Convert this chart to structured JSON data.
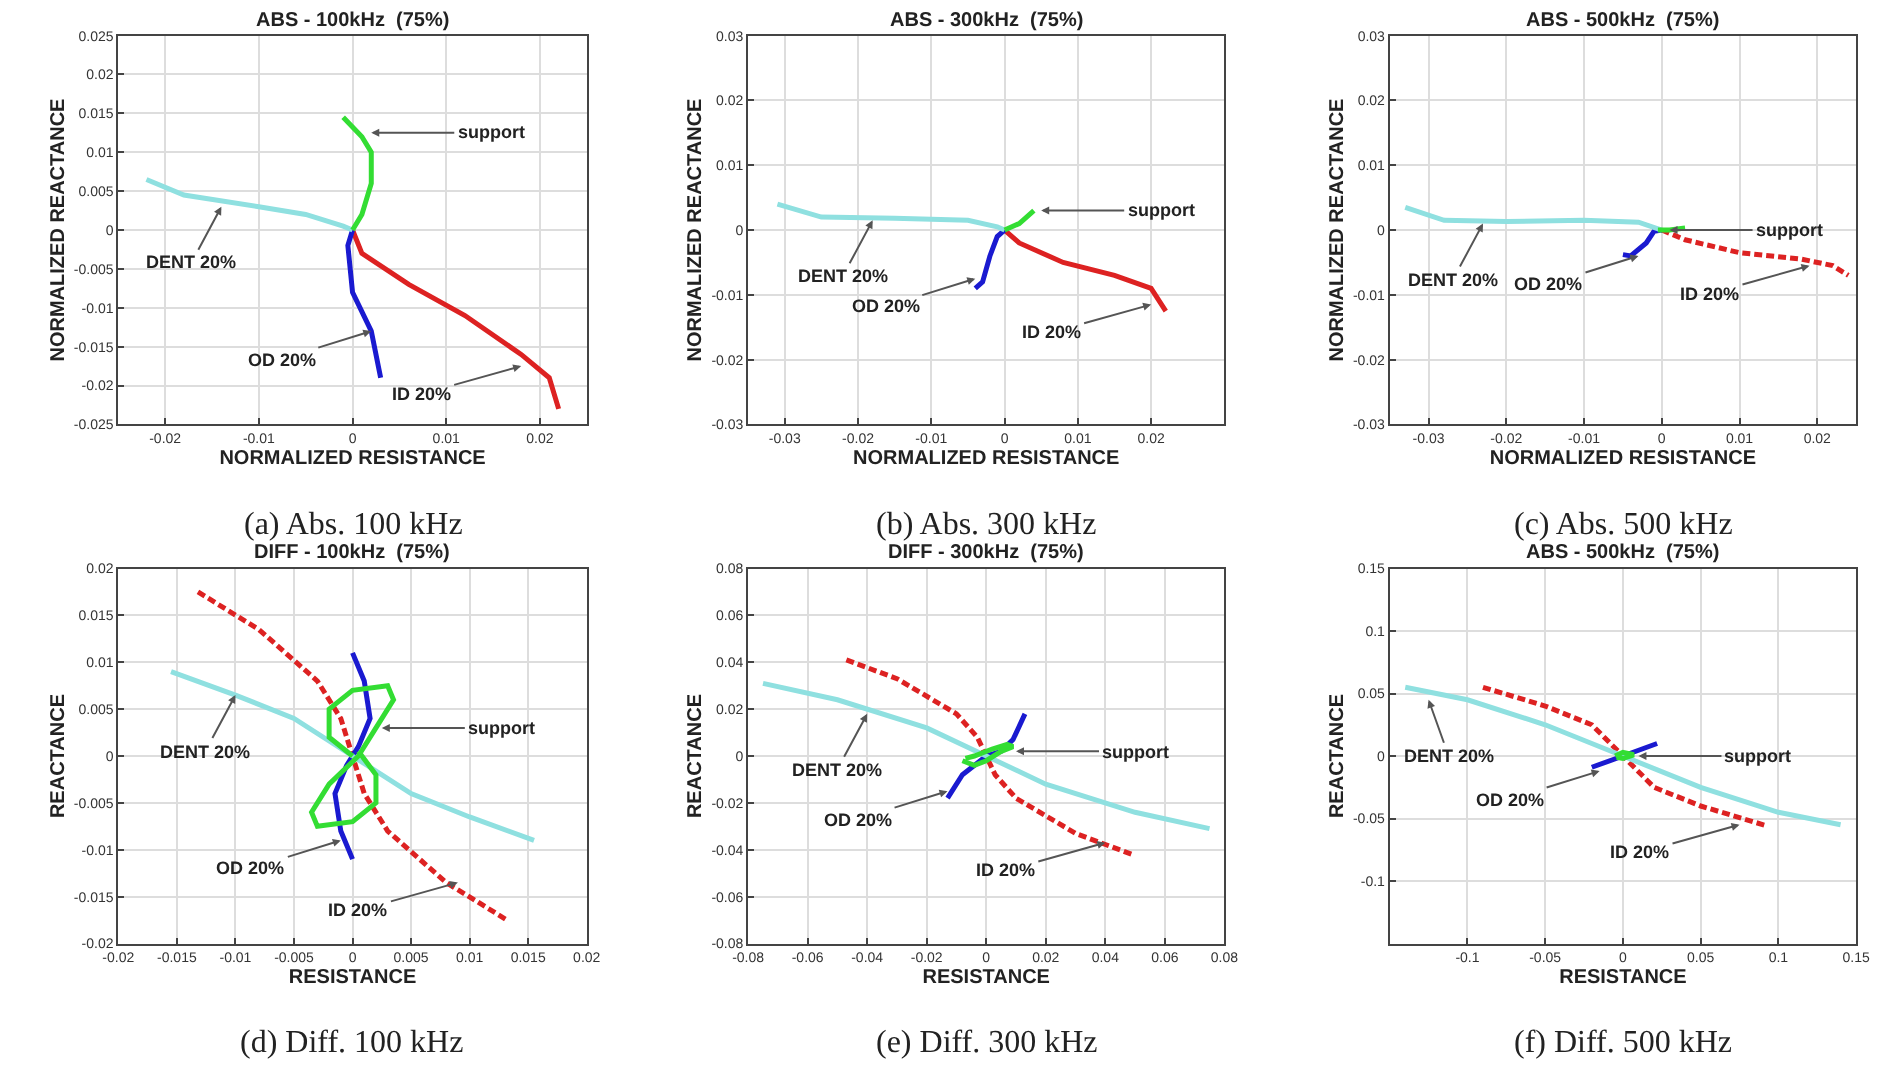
{
  "chart_data": [
    {
      "type": "line",
      "title": "ABS - 100kHz  (75%)",
      "xlabel": "NORMALIZED RESISTANCE",
      "ylabel": "NORMALIZED REACTANCE",
      "xlim": [
        -0.025,
        0.025
      ],
      "xticks": [
        -0.02,
        -0.01,
        0,
        0.01,
        0.02
      ],
      "ylim": [
        -0.025,
        0.025
      ],
      "yticks": [
        -0.025,
        -0.02,
        -0.015,
        -0.01,
        -0.005,
        0,
        0.005,
        0.01,
        0.015,
        0.02,
        0.025
      ],
      "grid": true,
      "series": [
        {
          "color": "#33dd33",
          "x": [
            0,
            0.001,
            0.002,
            0.002,
            0.001,
            -0.001
          ],
          "values": [
            0,
            0.002,
            0.006,
            0.01,
            0.012,
            0.0145
          ]
        },
        {
          "color": "#8fe0e0",
          "x": [
            -0.022,
            -0.018,
            -0.01,
            -0.005,
            -0.001,
            0
          ],
          "values": [
            0.0065,
            0.0045,
            0.003,
            0.002,
            0.0005,
            0
          ]
        },
        {
          "color": "#1a1ad0",
          "x": [
            0,
            -0.0005,
            0,
            0.002,
            0.003
          ],
          "values": [
            0,
            -0.002,
            -0.008,
            -0.013,
            -0.019
          ]
        },
        {
          "color": "#dd2222",
          "x": [
            0,
            0.001,
            0.006,
            0.012,
            0.018,
            0.021,
            0.022
          ],
          "values": [
            0,
            -0.003,
            -0.007,
            -0.011,
            -0.016,
            -0.019,
            -0.023
          ]
        }
      ],
      "annotations": [
        {
          "text": "support",
          "x": 0.002,
          "y": 0.0125
        },
        {
          "text": "DENT 20%",
          "x": -0.014,
          "y": 0.003
        },
        {
          "text": "OD 20%",
          "x": 0.002,
          "y": -0.013
        },
        {
          "text": "ID 20%",
          "x": 0.018,
          "y": -0.0175
        },
        "(a) Abs. 100 kHz"
      ]
    },
    {
      "type": "line",
      "title": "ABS - 300kHz  (75%)",
      "xlabel": "NORMALIZED RESISTANCE",
      "ylabel": "NORMALIZED REACTANCE",
      "xlim": [
        -0.035,
        0.03
      ],
      "xticks": [
        -0.03,
        -0.02,
        -0.01,
        0,
        0.01,
        0.02
      ],
      "ylim": [
        -0.03,
        0.03
      ],
      "yticks": [
        -0.03,
        -0.02,
        -0.01,
        0,
        0.01,
        0.02,
        0.03
      ],
      "grid": true,
      "series": [
        {
          "color": "#33dd33",
          "x": [
            0,
            0.002,
            0.003,
            0.004
          ],
          "values": [
            0,
            0.001,
            0.002,
            0.003
          ]
        },
        {
          "color": "#8fe0e0",
          "x": [
            -0.031,
            -0.025,
            -0.015,
            -0.005,
            -0.001,
            0
          ],
          "values": [
            0.004,
            0.002,
            0.0018,
            0.0015,
            0.0005,
            0
          ]
        },
        {
          "color": "#1a1ad0",
          "x": [
            0,
            -0.001,
            -0.002,
            -0.003,
            -0.004
          ],
          "values": [
            0,
            -0.001,
            -0.004,
            -0.008,
            -0.009
          ]
        },
        {
          "color": "#dd2222",
          "x": [
            0,
            0.002,
            0.008,
            0.015,
            0.02,
            0.022
          ],
          "values": [
            0,
            -0.002,
            -0.005,
            -0.007,
            -0.009,
            -0.0125
          ]
        }
      ],
      "annotations": [
        {
          "text": "support",
          "x": 0.005,
          "y": 0.003
        },
        {
          "text": "DENT 20%",
          "x": -0.018,
          "y": 0.0015
        },
        {
          "text": "OD 20%",
          "x": -0.004,
          "y": -0.0075
        },
        {
          "text": "ID 20%",
          "x": 0.02,
          "y": -0.0115
        },
        "(b) Abs. 300 kHz"
      ]
    },
    {
      "type": "line",
      "title": "ABS - 500kHz  (75%)",
      "xlabel": "NORMALIZED RESISTANCE",
      "ylabel": "NORMALIZED REACTANCE",
      "xlim": [
        -0.035,
        0.025
      ],
      "xticks": [
        -0.03,
        -0.02,
        -0.01,
        0,
        0.01,
        0.02
      ],
      "ylim": [
        -0.03,
        0.03
      ],
      "yticks": [
        -0.03,
        -0.02,
        -0.01,
        0,
        0.01,
        0.02,
        0.03
      ],
      "grid": true,
      "series": [
        {
          "color": "#33dd33",
          "x": [
            -0.0005,
            0.001,
            0.003
          ],
          "values": [
            0,
            0,
            0.0003
          ]
        },
        {
          "color": "#8fe0e0",
          "x": [
            -0.033,
            -0.028,
            -0.02,
            -0.01,
            -0.003,
            0
          ],
          "values": [
            0.0035,
            0.0015,
            0.0013,
            0.0015,
            0.0012,
            0
          ]
        },
        {
          "color": "#1a1ad0",
          "x": [
            0,
            -0.001,
            -0.002,
            -0.004,
            -0.005
          ],
          "values": [
            0,
            -0.0002,
            -0.002,
            -0.004,
            -0.0038
          ]
        },
        {
          "color": "#dd2222",
          "line_style": "dashed",
          "x": [
            0,
            0.003,
            0.01,
            0.018,
            0.022,
            0.024
          ],
          "values": [
            0,
            -0.0015,
            -0.0035,
            -0.0045,
            -0.0055,
            -0.007
          ]
        }
      ],
      "annotations": [
        {
          "text": "support",
          "x": 0.001,
          "y": 0
        },
        {
          "text": "DENT 20%",
          "x": -0.023,
          "y": 0.001
        },
        {
          "text": "OD 20%",
          "x": -0.003,
          "y": -0.004
        },
        {
          "text": "ID 20%",
          "x": 0.019,
          "y": -0.0055
        },
        "(c) Abs. 500 kHz"
      ]
    },
    {
      "type": "line",
      "title": "DIFF - 100kHz  (75%)",
      "xlabel": "RESISTANCE",
      "ylabel": "REACTANCE",
      "xlim": [
        -0.02,
        0.02
      ],
      "xticks": [
        -0.02,
        -0.015,
        -0.01,
        -0.005,
        0,
        0.005,
        0.01,
        0.015,
        0.02
      ],
      "ylim": [
        -0.02,
        0.02
      ],
      "yticks": [
        -0.02,
        -0.015,
        -0.01,
        -0.005,
        0,
        0.005,
        0.01,
        0.015,
        0.02
      ],
      "grid": true,
      "series": [
        {
          "color": "#33dd33",
          "x": [
            0,
            -0.002,
            -0.002,
            0,
            0.003,
            0.0035,
            0.002,
            0.0005,
            -0.002,
            -0.0035,
            -0.003,
            0,
            0.002,
            0.002,
            0.0005
          ],
          "values": [
            0,
            0.002,
            0.005,
            0.007,
            0.0075,
            0.006,
            0.003,
            0,
            -0.003,
            -0.006,
            -0.0075,
            -0.007,
            -0.005,
            -0.002,
            0.0005
          ]
        },
        {
          "color": "#8fe0e0",
          "x": [
            -0.0155,
            -0.01,
            -0.005,
            0,
            0.005,
            0.01,
            0.0155
          ],
          "values": [
            0.009,
            0.0065,
            0.004,
            0,
            -0.004,
            -0.0065,
            -0.009
          ]
        },
        {
          "color": "#1a1ad0",
          "x": [
            0,
            0.001,
            0.0015,
            0.0005,
            0,
            -0.0005,
            -0.0015,
            -0.001,
            0
          ],
          "values": [
            0.011,
            0.008,
            0.004,
            0.001,
            0,
            -0.001,
            -0.004,
            -0.008,
            -0.011
          ]
        },
        {
          "color": "#dd2222",
          "line_style": "dashed",
          "x": [
            -0.0132,
            -0.008,
            -0.003,
            -0.001,
            0,
            0.001,
            0.003,
            0.008,
            0.0132
          ],
          "values": [
            0.0175,
            0.0135,
            0.008,
            0.004,
            0,
            -0.004,
            -0.008,
            -0.0135,
            -0.0175
          ]
        }
      ],
      "annotations": [
        {
          "text": "support",
          "x": 0.0025,
          "y": 0.003
        },
        {
          "text": "DENT 20%",
          "x": -0.01,
          "y": 0.0065
        },
        {
          "text": "OD 20%",
          "x": -0.001,
          "y": -0.009
        },
        {
          "text": "ID 20%",
          "x": 0.009,
          "y": -0.0135
        },
        "(d) Diff. 100 kHz"
      ]
    },
    {
      "type": "line",
      "title": "DIFF - 300kHz  (75%)",
      "xlabel": "RESISTANCE",
      "ylabel": "REACTANCE",
      "xlim": [
        -0.08,
        0.08
      ],
      "xticks": [
        -0.08,
        -0.06,
        -0.04,
        -0.02,
        0,
        0.02,
        0.04,
        0.06,
        0.08
      ],
      "ylim": [
        -0.08,
        0.08
      ],
      "yticks": [
        -0.08,
        -0.06,
        -0.04,
        -0.02,
        0,
        0.02,
        0.04,
        0.06,
        0.08
      ],
      "grid": true,
      "series": [
        {
          "color": "#33dd33",
          "x": [
            -0.008,
            -0.004,
            0,
            0.005,
            0.009,
            0.007,
            0.002,
            -0.004,
            -0.007
          ],
          "values": [
            -0.002,
            -0.004,
            -0.002,
            0.002,
            0.004,
            0.005,
            0.003,
            0,
            -0.001
          ]
        },
        {
          "color": "#8fe0e0",
          "x": [
            -0.075,
            -0.05,
            -0.02,
            0,
            0.02,
            0.05,
            0.075
          ],
          "values": [
            0.031,
            0.024,
            0.012,
            0,
            -0.012,
            -0.024,
            -0.031
          ]
        },
        {
          "color": "#1a1ad0",
          "x": [
            -0.013,
            -0.008,
            -0.002,
            0,
            0.005,
            0.009,
            0.013
          ],
          "values": [
            -0.018,
            -0.008,
            -0.002,
            0,
            0.002,
            0.007,
            0.018
          ]
        },
        {
          "color": "#dd2222",
          "line_style": "dashed",
          "x": [
            -0.047,
            -0.03,
            -0.01,
            -0.003,
            0,
            0.003,
            0.01,
            0.03,
            0.049
          ],
          "values": [
            0.041,
            0.033,
            0.018,
            0.008,
            0,
            -0.008,
            -0.018,
            -0.033,
            -0.042
          ]
        }
      ],
      "annotations": [
        {
          "text": "support",
          "x": 0.01,
          "y": 0.002
        },
        {
          "text": "DENT 20%",
          "x": -0.04,
          "y": 0.018
        },
        {
          "text": "OD 20%",
          "x": -0.013,
          "y": -0.015
        },
        {
          "text": "ID 20%",
          "x": 0.04,
          "y": -0.037
        },
        "(e) Diff. 300 kHz"
      ]
    },
    {
      "type": "line",
      "title": "ABS - 500kHz  (75%)",
      "xlabel": "RESISTANCE",
      "ylabel": "REACTANCE",
      "xlim": [
        -0.15,
        0.15
      ],
      "xticks": [
        -0.1,
        -0.05,
        0,
        0.05,
        0.1,
        0.15
      ],
      "ylim": [
        -0.15,
        0.15
      ],
      "yticks": [
        -0.1,
        -0.05,
        0,
        0.05,
        0.1,
        0.15
      ],
      "grid": true,
      "series": [
        {
          "color": "#33dd33",
          "x": [
            -0.005,
            0,
            0.007,
            0,
            -0.004
          ],
          "values": [
            0,
            0.003,
            0.001,
            -0.002,
            -0.001
          ]
        },
        {
          "color": "#8fe0e0",
          "x": [
            -0.14,
            -0.1,
            -0.05,
            0,
            0.05,
            0.1,
            0.14
          ],
          "values": [
            0.055,
            0.045,
            0.025,
            0,
            -0.025,
            -0.045,
            -0.055
          ]
        },
        {
          "color": "#1a1ad0",
          "x": [
            -0.02,
            0,
            0.022
          ],
          "values": [
            -0.009,
            0,
            0.01
          ]
        },
        {
          "color": "#dd2222",
          "line_style": "dashed",
          "x": [
            -0.09,
            -0.05,
            -0.02,
            0,
            0.02,
            0.05,
            0.093
          ],
          "values": [
            0.055,
            0.04,
            0.025,
            0,
            -0.025,
            -0.04,
            -0.056
          ]
        }
      ],
      "annotations": [
        {
          "text": "support",
          "x": 0.01,
          "y": 0
        },
        {
          "text": "DENT 20%",
          "x": -0.125,
          "y": 0.045
        },
        {
          "text": "OD 20%",
          "x": -0.015,
          "y": -0.012
        },
        {
          "text": "ID 20%",
          "x": 0.075,
          "y": -0.055
        },
        "(f) Diff. 500 kHz"
      ]
    }
  ]
}
